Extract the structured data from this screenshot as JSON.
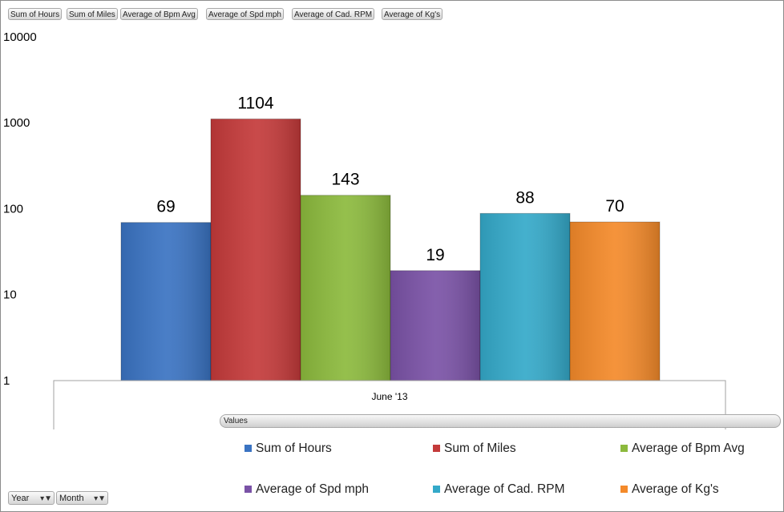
{
  "field_buttons": [
    "Sum of Hours",
    "Sum of Miles",
    "Average of Bpm Avg",
    "Average of Spd mph",
    "Average of Cad. RPM",
    "Average of Kg's"
  ],
  "values_pill": "Values",
  "filters": [
    {
      "label": "Year",
      "icon": "filter-dropdown-icon"
    },
    {
      "label": "Month",
      "icon": "filter-dropdown-icon"
    }
  ],
  "chart_data": {
    "type": "bar",
    "yscale": "log",
    "ylim": [
      1,
      10000
    ],
    "yticks": [
      "1",
      "10",
      "100",
      "1000",
      "10000"
    ],
    "categories": [
      "June '13"
    ],
    "grid": false,
    "legend_position": "bottom",
    "series": [
      {
        "name": "Sum of Hours",
        "values": [
          69
        ],
        "label": "69",
        "color": "#3a73c2"
      },
      {
        "name": "Sum of Miles",
        "values": [
          1104
        ],
        "label": "1104",
        "color": "#c43a3a"
      },
      {
        "name": "Average of Bpm Avg",
        "values": [
          143
        ],
        "label": "143",
        "color": "#8cba3d"
      },
      {
        "name": "Average of Spd mph",
        "values": [
          19
        ],
        "label": "19",
        "color": "#7a52a6"
      },
      {
        "name": "Average of Cad. RPM",
        "values": [
          88
        ],
        "label": "88",
        "color": "#34a9c9"
      },
      {
        "name": "Average of Kg's",
        "values": [
          70
        ],
        "label": "70",
        "color": "#f48a2a"
      }
    ]
  }
}
